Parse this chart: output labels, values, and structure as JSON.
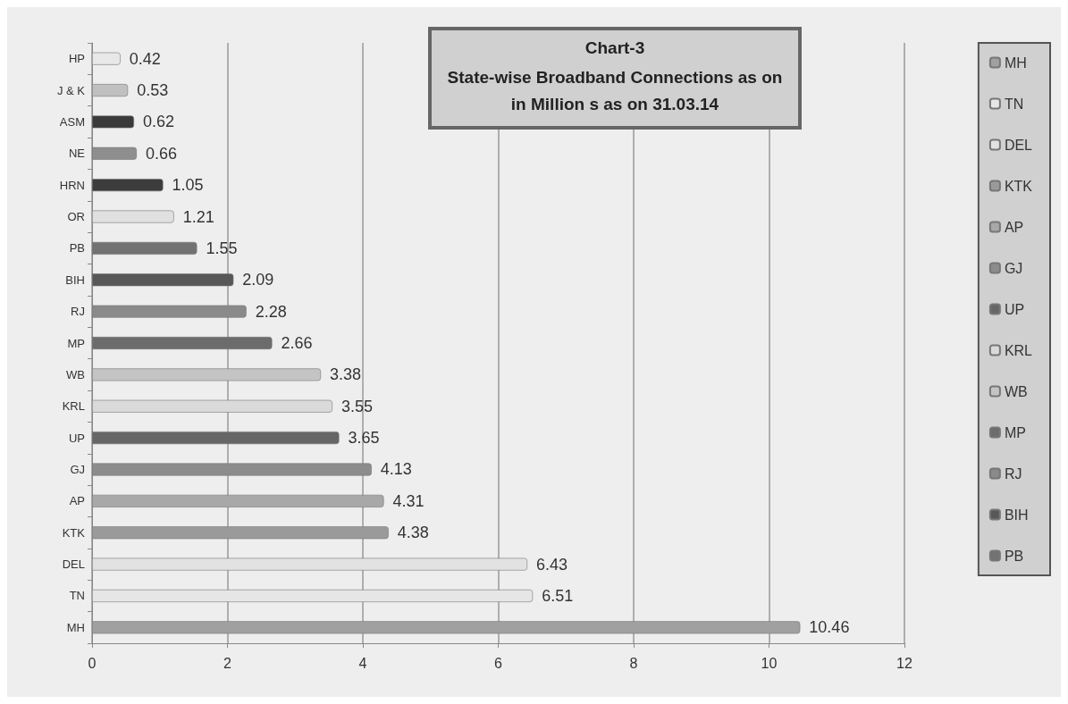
{
  "chart_data": {
    "type": "bar",
    "orientation": "horizontal",
    "stacked": true,
    "title": "Chart-3",
    "subtitle": "State-wise Broadband Connections as on\nin Million s as on 31.03.14",
    "categories": [
      "HP",
      "J & K",
      "ASM",
      "NE",
      "HRN",
      "OR",
      "PB",
      "BIH",
      "RJ",
      "MP",
      "WB",
      "KRL",
      "UP",
      "GJ",
      "AP",
      "KTK",
      "DEL",
      "TN",
      "MH"
    ],
    "series": [
      {
        "name": "MH",
        "color": "#a0a0a0",
        "values": [
          null,
          null,
          null,
          null,
          null,
          null,
          null,
          null,
          null,
          null,
          null,
          null,
          null,
          null,
          null,
          null,
          null,
          null,
          10.46
        ]
      },
      {
        "name": "TN",
        "color": "#e6e6e6",
        "values": [
          null,
          null,
          null,
          null,
          null,
          null,
          null,
          null,
          null,
          null,
          null,
          null,
          null,
          null,
          null,
          null,
          null,
          6.51,
          null
        ]
      },
      {
        "name": "DEL",
        "color": "#e2e2e2",
        "values": [
          null,
          null,
          null,
          null,
          null,
          null,
          null,
          null,
          null,
          null,
          null,
          null,
          null,
          null,
          null,
          null,
          6.43,
          null,
          null
        ]
      },
      {
        "name": "KTK",
        "color": "#9a9a9a",
        "values": [
          null,
          null,
          null,
          null,
          null,
          null,
          null,
          null,
          null,
          null,
          null,
          null,
          null,
          null,
          null,
          4.38,
          null,
          null,
          null
        ]
      },
      {
        "name": "AP",
        "color": "#a8a8a8",
        "values": [
          null,
          null,
          null,
          null,
          null,
          null,
          null,
          null,
          null,
          null,
          null,
          null,
          null,
          null,
          4.31,
          null,
          null,
          null,
          null
        ]
      },
      {
        "name": "GJ",
        "color": "#8c8c8c",
        "values": [
          null,
          null,
          null,
          null,
          null,
          null,
          null,
          null,
          null,
          null,
          null,
          null,
          null,
          4.13,
          null,
          null,
          null,
          null,
          null
        ]
      },
      {
        "name": "UP",
        "color": "#666666",
        "values": [
          null,
          null,
          null,
          null,
          null,
          null,
          null,
          null,
          null,
          null,
          null,
          null,
          3.65,
          null,
          null,
          null,
          null,
          null,
          null
        ]
      },
      {
        "name": "KRL",
        "color": "#dadada",
        "values": [
          null,
          null,
          null,
          null,
          null,
          null,
          null,
          null,
          null,
          null,
          null,
          3.55,
          null,
          null,
          null,
          null,
          null,
          null,
          null
        ]
      },
      {
        "name": "WB",
        "color": "#c4c4c4",
        "values": [
          null,
          null,
          null,
          null,
          null,
          null,
          null,
          null,
          null,
          null,
          3.38,
          null,
          null,
          null,
          null,
          null,
          null,
          null,
          null
        ]
      },
      {
        "name": "MP",
        "color": "#6c6c6c",
        "values": [
          null,
          null,
          null,
          null,
          null,
          null,
          null,
          null,
          null,
          2.66,
          null,
          null,
          null,
          null,
          null,
          null,
          null,
          null,
          null
        ]
      },
      {
        "name": "RJ",
        "color": "#8a8a8a",
        "values": [
          null,
          null,
          null,
          null,
          null,
          null,
          null,
          null,
          2.28,
          null,
          null,
          null,
          null,
          null,
          null,
          null,
          null,
          null,
          null
        ]
      },
      {
        "name": "BIH",
        "color": "#585858",
        "values": [
          null,
          null,
          null,
          null,
          null,
          null,
          null,
          2.09,
          null,
          null,
          null,
          null,
          null,
          null,
          null,
          null,
          null,
          null,
          null
        ]
      },
      {
        "name": "PB",
        "color": "#727272",
        "values": [
          null,
          null,
          null,
          null,
          null,
          null,
          1.55,
          null,
          null,
          null,
          null,
          null,
          null,
          null,
          null,
          null,
          null,
          null,
          null
        ]
      },
      {
        "color": "#e0e0e0",
        "values": [
          null,
          null,
          null,
          null,
          null,
          1.21,
          null,
          null,
          null,
          null,
          null,
          null,
          null,
          null,
          null,
          null,
          null,
          null,
          null
        ]
      },
      {
        "color": "#3c3c3c",
        "values": [
          null,
          null,
          null,
          null,
          1.05,
          null,
          null,
          null,
          null,
          null,
          null,
          null,
          null,
          null,
          null,
          null,
          null,
          null,
          null
        ]
      },
      {
        "color": "#8e8e8e",
        "values": [
          null,
          null,
          null,
          0.66,
          null,
          null,
          null,
          null,
          null,
          null,
          null,
          null,
          null,
          null,
          null,
          null,
          null,
          null,
          null
        ]
      },
      {
        "color": "#3a3a3a",
        "values": [
          null,
          null,
          0.62,
          null,
          null,
          null,
          null,
          null,
          null,
          null,
          null,
          null,
          null,
          null,
          null,
          null,
          null,
          null,
          null
        ]
      },
      {
        "color": "#c0c0c0",
        "values": [
          null,
          0.53,
          null,
          null,
          null,
          null,
          null,
          null,
          null,
          null,
          null,
          null,
          null,
          null,
          null,
          null,
          null,
          null,
          null
        ]
      },
      {
        "color": "#e8e8e8",
        "values": [
          0.42,
          null,
          null,
          null,
          null,
          null,
          null,
          null,
          null,
          null,
          null,
          null,
          null,
          null,
          null,
          null,
          null,
          null,
          null
        ]
      }
    ],
    "xlim": [
      0,
      12
    ],
    "xticks": [
      0,
      2,
      4,
      6,
      8,
      10,
      12
    ],
    "grid": "x",
    "legend": "right",
    "data_labels": true
  }
}
